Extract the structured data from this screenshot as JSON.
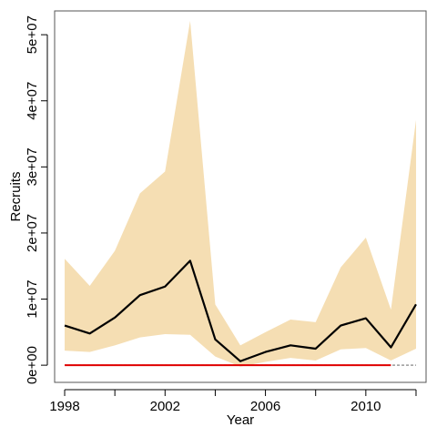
{
  "chart_data": {
    "type": "area",
    "title": "",
    "xlabel": "Year",
    "ylabel": "Recruits",
    "x": [
      1998,
      1999,
      2000,
      2001,
      2002,
      2003,
      2004,
      2005,
      2006,
      2007,
      2008,
      2009,
      2010,
      2011,
      2012
    ],
    "xlim": [
      1997.6,
      2012.4
    ],
    "ylim": [
      -2600000,
      53600000
    ],
    "x_ticks": [
      1998,
      2002,
      2006,
      2010
    ],
    "x_minor_ticks": [
      2000,
      2004,
      2008,
      2012
    ],
    "y_ticks": [
      0,
      10000000,
      20000000,
      30000000,
      40000000,
      50000000
    ],
    "y_tick_labels": [
      "0e+00",
      "1e+07",
      "2e+07",
      "3e+07",
      "4e+07",
      "5e+07"
    ],
    "series": [
      {
        "role": "band",
        "upper": [
          16100000,
          12000000,
          17300000,
          26000000,
          29300000,
          52100000,
          9200000,
          3000000,
          5000000,
          6900000,
          6500000,
          14800000,
          19300000,
          8400000,
          37100000
        ],
        "lower": [
          2200000,
          2000000,
          3000000,
          4200000,
          4700000,
          4600000,
          1300000,
          -200000,
          500000,
          1100000,
          700000,
          2400000,
          2600000,
          700000,
          2500000
        ],
        "color": "#f5deb3"
      },
      {
        "role": "line",
        "values": [
          6000000,
          4800000,
          7200000,
          10600000,
          11900000,
          15800000,
          3900000,
          600000,
          2000000,
          3000000,
          2500000,
          6000000,
          7100000,
          2700000,
          9200000
        ],
        "color": "#000000"
      },
      {
        "role": "reference",
        "values": [
          0,
          0,
          0,
          0,
          0,
          0,
          0,
          0,
          0,
          0,
          0,
          0,
          0,
          0,
          0
        ],
        "color": "#e00000",
        "dashed_tail_color": "#999999"
      }
    ],
    "grid": false,
    "legend": "none"
  }
}
